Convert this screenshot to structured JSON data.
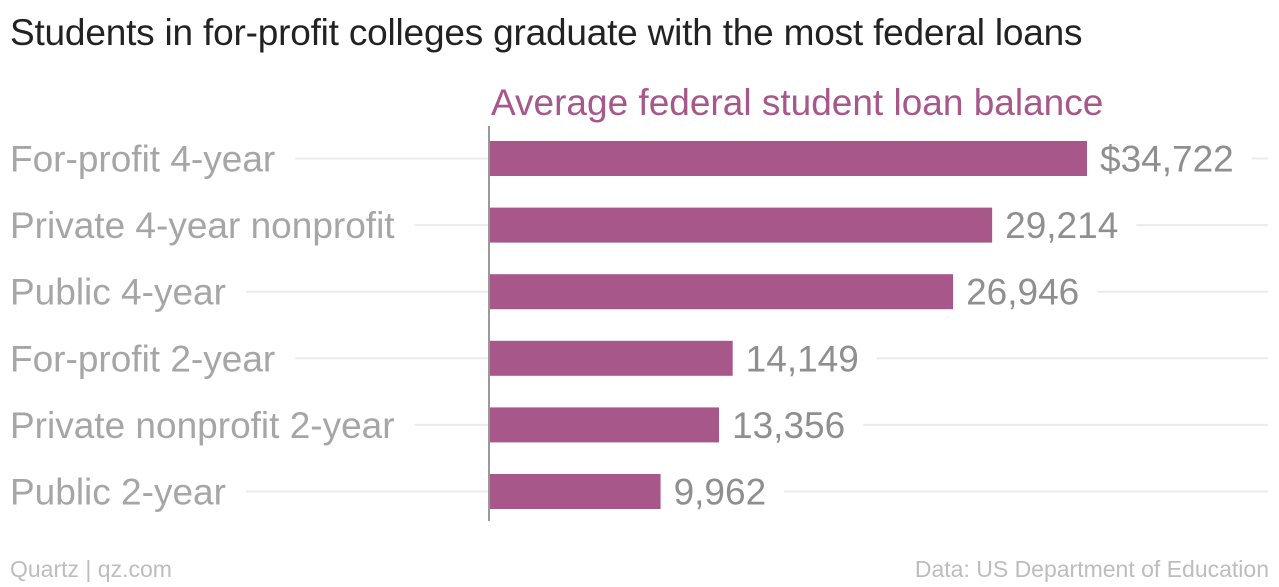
{
  "title": "Students in for-profit colleges graduate with the most federal loans",
  "footer": {
    "source_left": "Quartz | qz.com",
    "source_right": "Data: US Department of Education"
  },
  "colors": {
    "bar": "#a8578a",
    "series_label": "#a8578a",
    "category_label": "#a6a6a6",
    "value_label": "#8f8f8f",
    "gridline": "#ebebeb",
    "axis": "#999999"
  },
  "chart_data": {
    "type": "bar",
    "orientation": "horizontal",
    "series": [
      {
        "name": "Average federal student loan balance",
        "values": [
          34722,
          29214,
          26946,
          14149,
          13356,
          9962
        ]
      }
    ],
    "categories": [
      "For-profit 4-year",
      "Private 4-year nonprofit",
      "Public 4-year",
      "For-profit 2-year",
      "Private nonprofit 2-year",
      "Public 2-year"
    ],
    "value_labels": [
      "$34,722",
      "29,214",
      "26,946",
      "14,149",
      "13,356",
      "9,962"
    ],
    "xlim": [
      0,
      40000
    ],
    "grid": true
  }
}
